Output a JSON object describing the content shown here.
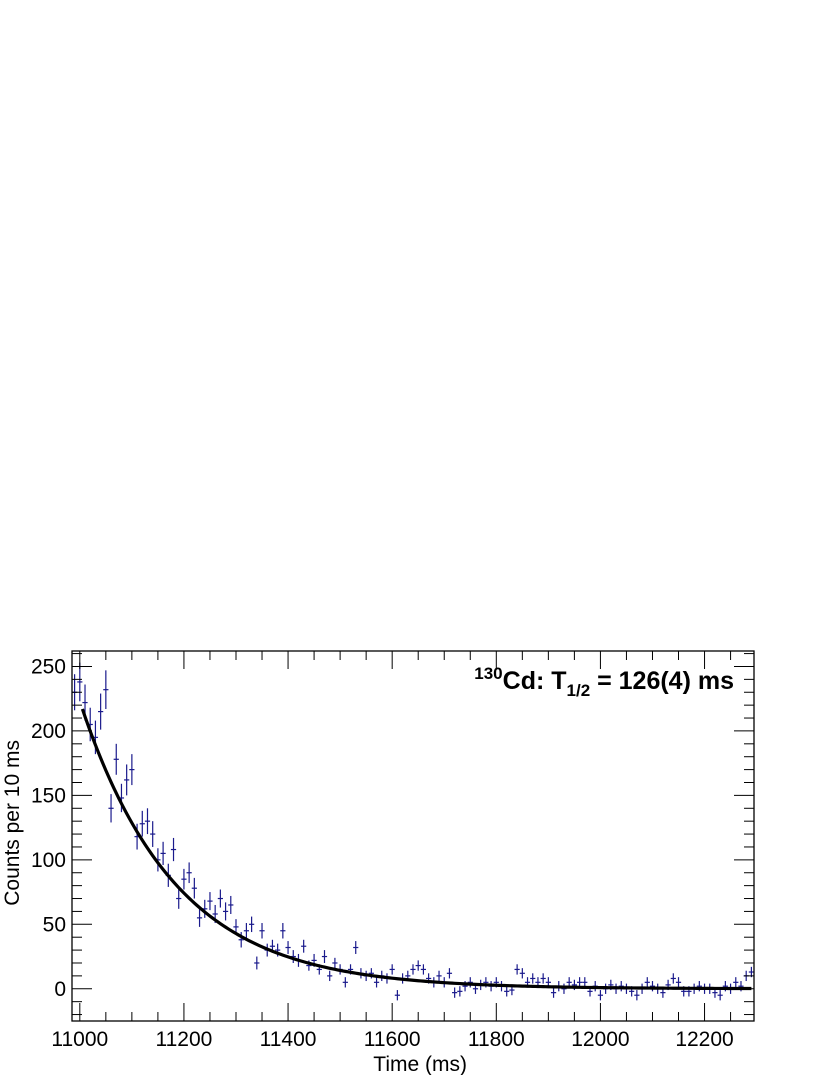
{
  "chart_data": {
    "type": "scatter",
    "annotation": {
      "superscript": "130",
      "element": "Cd: T",
      "subscript": "1/2",
      "value": " = 126(4) ms"
    },
    "xlabel": "Time (ms)",
    "ylabel": "Counts per 10 ms",
    "xlim": [
      10985,
      12295
    ],
    "ylim": [
      -25,
      262
    ],
    "x_ticks": [
      11000,
      11200,
      11400,
      11600,
      11800,
      12000,
      12200
    ],
    "y_ticks": [
      0,
      50,
      100,
      150,
      200,
      250
    ],
    "grid": false,
    "colors": {
      "data": "#1a1a8c",
      "fit": "#000000",
      "frame": "#000000"
    },
    "bin_width": 10,
    "series": [
      {
        "style": "points-with-errorbars",
        "x": [
          10990,
          11000,
          11010,
          11020,
          11030,
          11040,
          11050,
          11060,
          11070,
          11080,
          11090,
          11100,
          11110,
          11120,
          11130,
          11140,
          11150,
          11160,
          11170,
          11180,
          11190,
          11200,
          11210,
          11220,
          11230,
          11240,
          11250,
          11260,
          11270,
          11280,
          11290,
          11300,
          11310,
          11320,
          11330,
          11340,
          11350,
          11360,
          11370,
          11380,
          11390,
          11400,
          11410,
          11420,
          11430,
          11440,
          11450,
          11460,
          11470,
          11480,
          11490,
          11500,
          11510,
          11520,
          11530,
          11540,
          11550,
          11560,
          11570,
          11580,
          11590,
          11600,
          11610,
          11620,
          11630,
          11640,
          11650,
          11660,
          11670,
          11680,
          11690,
          11700,
          11710,
          11720,
          11730,
          11740,
          11750,
          11760,
          11770,
          11780,
          11790,
          11800,
          11810,
          11820,
          11830,
          11840,
          11850,
          11860,
          11870,
          11880,
          11890,
          11900,
          11910,
          11920,
          11930,
          11940,
          11950,
          11960,
          11970,
          11980,
          11990,
          12000,
          12010,
          12020,
          12030,
          12040,
          12050,
          12060,
          12070,
          12080,
          12090,
          12100,
          12110,
          12120,
          12130,
          12140,
          12150,
          12160,
          12170,
          12180,
          12190,
          12200,
          12210,
          12220,
          12230,
          12240,
          12250,
          12260,
          12270,
          12280,
          12290
        ],
        "y": [
          230,
          238,
          222,
          205,
          195,
          215,
          232,
          140,
          178,
          148,
          162,
          170,
          118,
          128,
          130,
          120,
          100,
          105,
          88,
          108,
          70,
          85,
          90,
          78,
          55,
          62,
          68,
          58,
          70,
          60,
          65,
          48,
          38,
          45,
          50,
          20,
          45,
          30,
          33,
          30,
          45,
          32,
          25,
          22,
          33,
          18,
          22,
          15,
          25,
          10,
          20,
          15,
          5,
          15,
          32,
          12,
          10,
          12,
          5,
          10,
          8,
          15,
          -5,
          8,
          10,
          15,
          18,
          15,
          8,
          5,
          10,
          5,
          12,
          -3,
          -2,
          2,
          5,
          0,
          3,
          5,
          2,
          5,
          2,
          -2,
          -1,
          15,
          12,
          5,
          8,
          5,
          8,
          5,
          -3,
          2,
          0,
          5,
          3,
          5,
          5,
          -2,
          2,
          -5,
          0,
          3,
          0,
          2,
          0,
          -2,
          -5,
          0,
          5,
          2,
          0,
          -3,
          3,
          8,
          5,
          -2,
          -2,
          0,
          2,
          0,
          0,
          -3,
          -5,
          2,
          0,
          5,
          2,
          10,
          13
        ],
        "yerr": [
          14,
          15,
          14,
          13,
          13,
          14,
          15,
          11,
          12,
          11,
          12,
          12,
          10,
          10,
          10,
          10,
          9,
          9,
          9,
          9,
          8,
          8,
          8,
          8,
          7,
          7,
          7,
          7,
          7,
          7,
          7,
          6,
          6,
          6,
          6,
          5,
          6,
          5,
          5,
          5,
          6,
          5,
          5,
          5,
          5,
          4,
          5,
          4,
          5,
          4,
          4,
          4,
          4,
          4,
          5,
          4,
          4,
          4,
          4,
          4,
          4,
          4,
          4,
          4,
          4,
          4,
          4,
          4,
          4,
          4,
          4,
          4,
          4,
          4,
          4,
          4,
          4,
          4,
          4,
          4,
          4,
          4,
          4,
          4,
          4,
          4,
          4,
          4,
          4,
          4,
          4,
          4,
          4,
          4,
          4,
          4,
          4,
          4,
          4,
          4,
          4,
          4,
          4,
          4,
          4,
          4,
          4,
          4,
          4,
          4,
          4,
          4,
          4,
          4,
          4,
          4,
          4,
          4,
          4,
          4,
          4,
          4,
          4,
          4,
          4,
          4,
          4,
          4,
          4,
          4,
          4
        ]
      },
      {
        "style": "fit-curve",
        "model": "exponential decay",
        "x_start": 11005,
        "x_end": 12290,
        "amplitude": 217,
        "half_life_ms": 126,
        "background": 0
      }
    ]
  }
}
